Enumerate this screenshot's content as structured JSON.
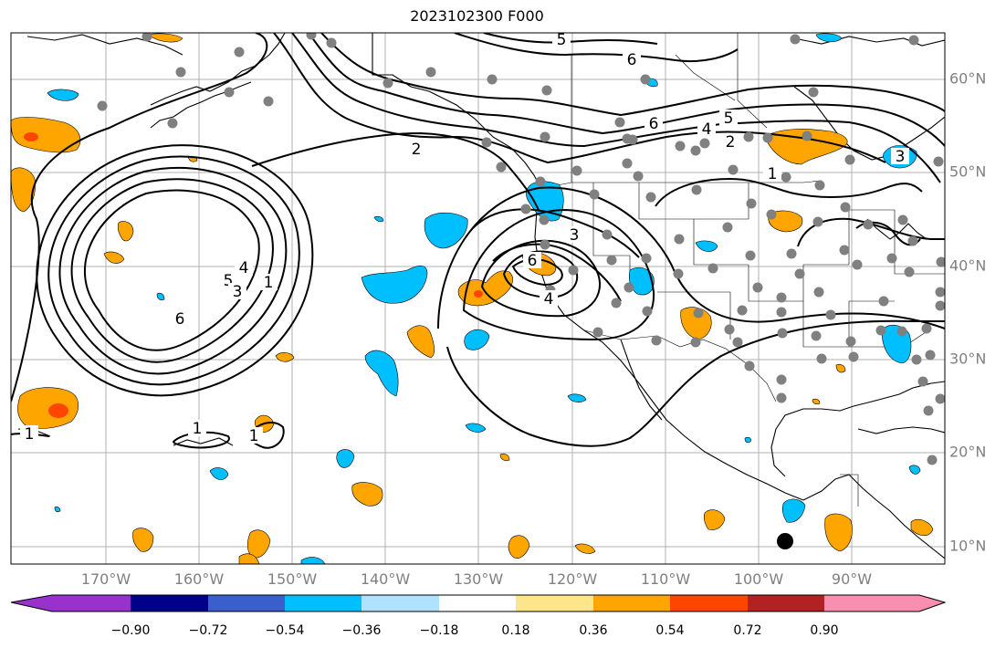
{
  "map": {
    "title": "2023102300 F000",
    "lon_labels": [
      "170°W",
      "160°W",
      "150°W",
      "140°W",
      "130°W",
      "120°W",
      "110°W",
      "100°W",
      "90°W"
    ],
    "lat_labels": [
      "60°N",
      "50°N",
      "40°N",
      "30°N",
      "20°N",
      "10°N"
    ],
    "contour_labels": [
      "5",
      "6",
      "6",
      "4",
      "5",
      "2",
      "2",
      "1",
      "3",
      "3",
      "6",
      "4",
      "4",
      "5",
      "3",
      "1",
      "6",
      "1",
      "1",
      "1"
    ]
  },
  "colorbar": {
    "tick_labels": [
      "−0.90",
      "−0.72",
      "−0.54",
      "−0.36",
      "−0.18",
      "0.18",
      "0.36",
      "0.54",
      "0.72",
      "0.90"
    ],
    "colors": [
      "#9932cc",
      "#00008b",
      "#3a5fcd",
      "#00bfff",
      "#b0e2ff",
      "#ffffff",
      "#fde68a",
      "#ffa500",
      "#ff4500",
      "#b22222",
      "#f88fb0"
    ]
  },
  "legend_colors": {
    "negative_fill": "#00bfff",
    "positive_fill": "#ffa500",
    "strong_positive_fill": "#ff4500",
    "station_dot": "#808080",
    "marker": "#000000"
  }
}
